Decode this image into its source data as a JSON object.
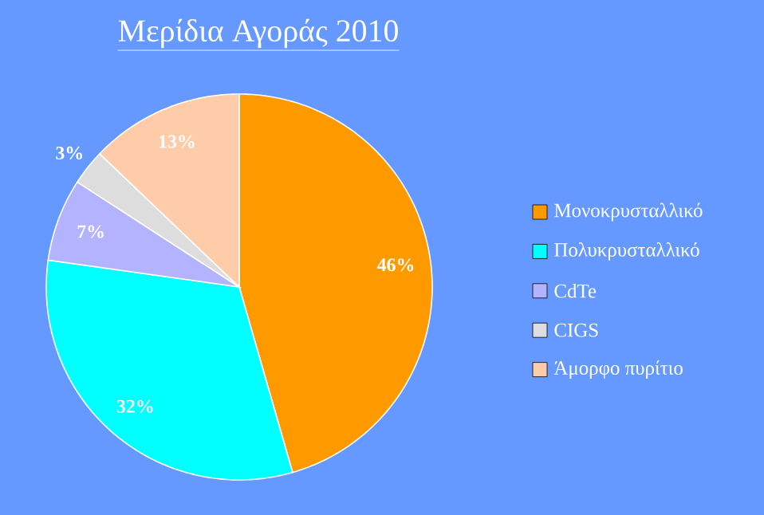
{
  "chart_data": {
    "type": "pie",
    "title": "Μερίδια Αγοράς 2010",
    "categories": [
      "Μονοκρυσταλλικό",
      "Πολυκρυσταλλικό",
      "CdTe",
      "CIGS",
      "Άμορφο πυρίτιο"
    ],
    "values": [
      46,
      32,
      7,
      3,
      13
    ],
    "value_labels": [
      "46%",
      "32%",
      "7%",
      "3%",
      "13%"
    ],
    "colors": [
      "#ff9900",
      "#00ffff",
      "#b3b3ff",
      "#dddddd",
      "#ffccaa"
    ],
    "legend": "right"
  }
}
